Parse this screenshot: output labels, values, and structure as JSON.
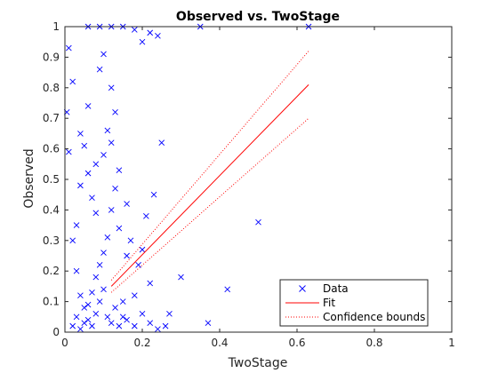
{
  "chart_data": {
    "type": "scatter",
    "title": "Observed vs. TwoStage",
    "xlabel": "TwoStage",
    "ylabel": "Observed",
    "xlim": [
      0,
      1
    ],
    "ylim": [
      0,
      1
    ],
    "xticks": [
      "0",
      "0.2",
      "0.4",
      "0.6",
      "0.8",
      "1"
    ],
    "yticks": [
      "0",
      "0.1",
      "0.2",
      "0.3",
      "0.4",
      "0.5",
      "0.6",
      "0.7",
      "0.8",
      "0.9",
      "1"
    ],
    "grid": false,
    "legend_position": "bottom-right",
    "colors": {
      "data": "#0000ff",
      "fit": "#ff0000",
      "bounds": "#ff0000",
      "axes": "#262626"
    },
    "series": [
      {
        "name": "Data",
        "kind": "marker-x",
        "points": [
          [
            0.63,
            1.0
          ],
          [
            0.35,
            1.0
          ],
          [
            0.22,
            0.98
          ],
          [
            0.24,
            0.97
          ],
          [
            0.18,
            0.99
          ],
          [
            0.12,
            1.0
          ],
          [
            0.06,
            1.0
          ],
          [
            0.09,
            1.0
          ],
          [
            0.15,
            1.0
          ],
          [
            0.2,
            0.95
          ],
          [
            0.5,
            0.36
          ],
          [
            0.42,
            0.14
          ],
          [
            0.37,
            0.03
          ],
          [
            0.3,
            0.18
          ],
          [
            0.27,
            0.06
          ],
          [
            0.25,
            0.62
          ],
          [
            0.23,
            0.45
          ],
          [
            0.21,
            0.38
          ],
          [
            0.19,
            0.22
          ],
          [
            0.17,
            0.3
          ],
          [
            0.16,
            0.25
          ],
          [
            0.15,
            0.1
          ],
          [
            0.14,
            0.53
          ],
          [
            0.13,
            0.72
          ],
          [
            0.12,
            0.8
          ],
          [
            0.11,
            0.66
          ],
          [
            0.1,
            0.91
          ],
          [
            0.09,
            0.86
          ],
          [
            0.08,
            0.55
          ],
          [
            0.07,
            0.44
          ],
          [
            0.06,
            0.74
          ],
          [
            0.05,
            0.61
          ],
          [
            0.04,
            0.48
          ],
          [
            0.03,
            0.35
          ],
          [
            0.02,
            0.82
          ],
          [
            0.01,
            0.93
          ],
          [
            0.01,
            0.59
          ],
          [
            0.005,
            0.72
          ],
          [
            0.02,
            0.3
          ],
          [
            0.03,
            0.2
          ],
          [
            0.04,
            0.12
          ],
          [
            0.05,
            0.08
          ],
          [
            0.06,
            0.04
          ],
          [
            0.07,
            0.02
          ],
          [
            0.08,
            0.06
          ],
          [
            0.09,
            0.1
          ],
          [
            0.1,
            0.14
          ],
          [
            0.11,
            0.05
          ],
          [
            0.12,
            0.03
          ],
          [
            0.13,
            0.08
          ],
          [
            0.14,
            0.02
          ],
          [
            0.15,
            0.05
          ],
          [
            0.16,
            0.04
          ],
          [
            0.18,
            0.02
          ],
          [
            0.2,
            0.06
          ],
          [
            0.22,
            0.03
          ],
          [
            0.24,
            0.01
          ],
          [
            0.26,
            0.02
          ],
          [
            0.02,
            0.02
          ],
          [
            0.03,
            0.05
          ],
          [
            0.04,
            0.01
          ],
          [
            0.05,
            0.03
          ],
          [
            0.06,
            0.09
          ],
          [
            0.07,
            0.13
          ],
          [
            0.08,
            0.18
          ],
          [
            0.09,
            0.22
          ],
          [
            0.1,
            0.26
          ],
          [
            0.11,
            0.31
          ],
          [
            0.12,
            0.4
          ],
          [
            0.13,
            0.47
          ],
          [
            0.04,
            0.65
          ],
          [
            0.06,
            0.52
          ],
          [
            0.08,
            0.39
          ],
          [
            0.1,
            0.58
          ],
          [
            0.12,
            0.62
          ],
          [
            0.14,
            0.34
          ],
          [
            0.16,
            0.42
          ],
          [
            0.18,
            0.12
          ],
          [
            0.2,
            0.27
          ],
          [
            0.22,
            0.16
          ]
        ]
      },
      {
        "name": "Fit",
        "kind": "line",
        "x": [
          0.12,
          0.63
        ],
        "y": [
          0.15,
          0.81
        ]
      },
      {
        "name": "Confidence bounds",
        "kind": "dotted",
        "x": [
          0.12,
          0.63
        ],
        "y": [
          0.17,
          0.92
        ]
      },
      {
        "name": "",
        "kind": "dotted",
        "x": [
          0.12,
          0.63
        ],
        "y": [
          0.13,
          0.7
        ]
      }
    ]
  }
}
